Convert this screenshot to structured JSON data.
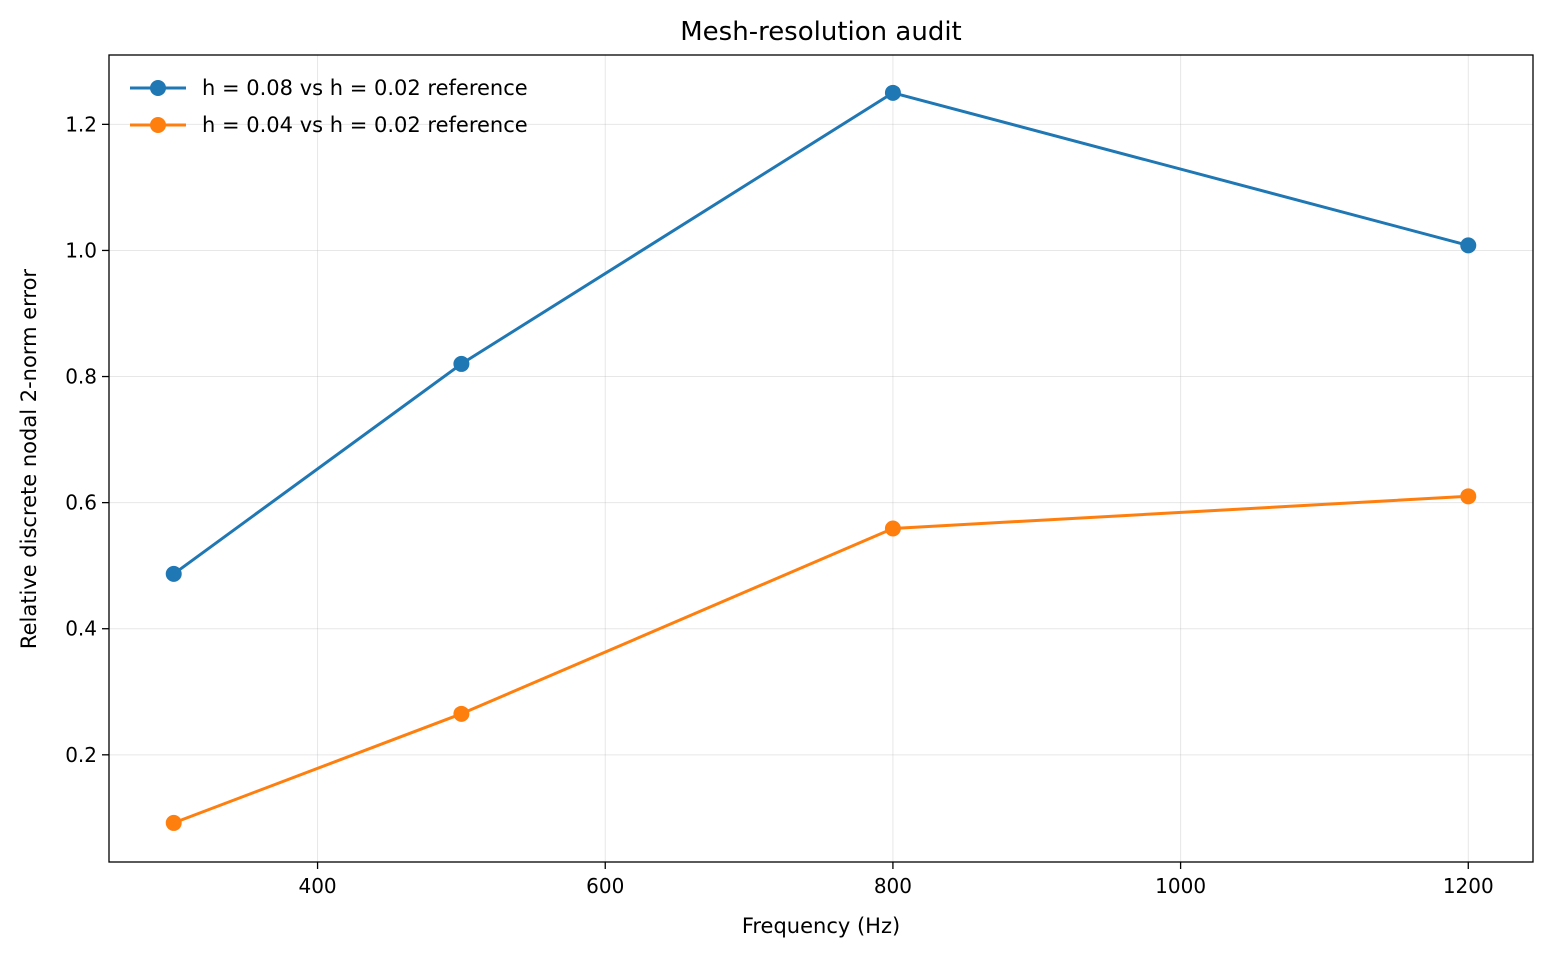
{
  "chart_data": {
    "type": "line",
    "title": "Mesh-resolution audit",
    "xlabel": "Frequency (Hz)",
    "ylabel": "Relative discrete nodal 2-norm error",
    "xlim": [
      255,
      1245
    ],
    "ylim": [
      0.03,
      1.31
    ],
    "xticks": [
      400,
      600,
      800,
      1000,
      1200
    ],
    "yticks": [
      0.2,
      0.4,
      0.6,
      0.8,
      1.0,
      1.2
    ],
    "xtick_labels": [
      "400",
      "600",
      "800",
      "1000",
      "1200"
    ],
    "ytick_labels": [
      "0.2",
      "0.4",
      "0.6",
      "0.8",
      "1.0",
      "1.2"
    ],
    "grid": true,
    "legend_position": "upper-left",
    "x": [
      300,
      500,
      800,
      1200
    ],
    "series": [
      {
        "name": "h = 0.08 vs h = 0.02 reference",
        "color": "#1f77b4",
        "values": [
          0.487,
          0.82,
          1.25,
          1.008
        ]
      },
      {
        "name": "h = 0.04 vs h = 0.02 reference",
        "color": "#ff7f0e",
        "values": [
          0.092,
          0.265,
          0.559,
          0.61
        ]
      }
    ]
  }
}
